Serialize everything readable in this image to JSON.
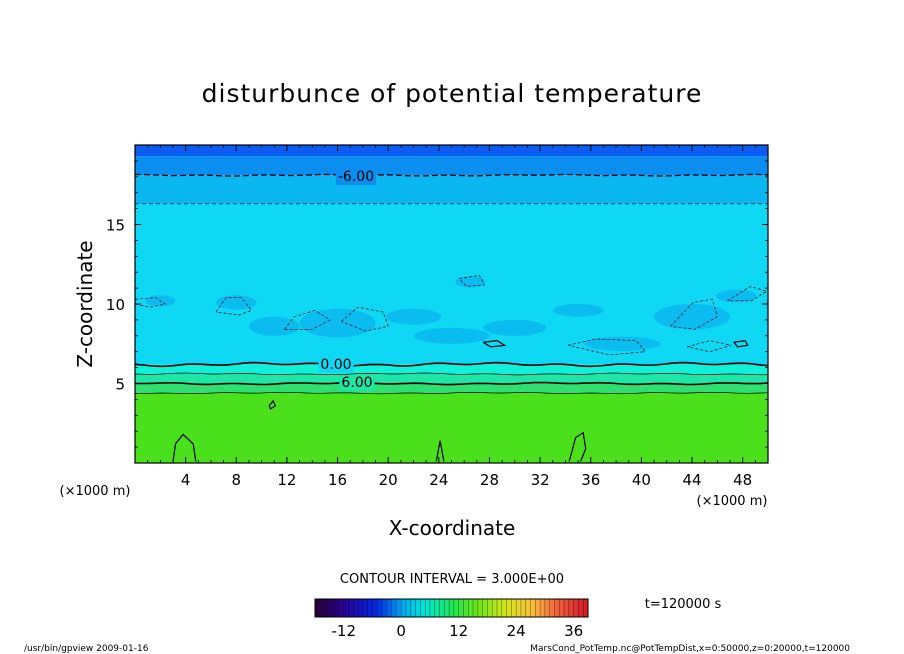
{
  "chart_data": {
    "type": "heatmap",
    "title": "disturbunce of potential temperature",
    "xlabel": "X-coordinate",
    "ylabel": "Z-coordinate",
    "x_unit_left": "(×1000 m)",
    "x_unit_right": "(×1000 m)",
    "xlim": [
      0,
      50
    ],
    "ylim": [
      0,
      20
    ],
    "x_ticks": [
      4,
      8,
      12,
      16,
      20,
      24,
      28,
      32,
      36,
      40,
      44,
      48
    ],
    "y_ticks": [
      5,
      10,
      15
    ],
    "contour_labels": [
      {
        "text": "-6.00",
        "x": 18.5,
        "z": 18.0
      },
      {
        "text": "0.00",
        "x": 15.8,
        "z": 6.2
      },
      {
        "text": "6.00",
        "x": 17.0,
        "z": 5.1
      }
    ],
    "contour_interval_label": "CONTOUR INTERVAL = 3.000E+00",
    "time_label": "t=120000 s",
    "colorbar": {
      "min": -18,
      "max": 39,
      "tick_labels": [
        "-12",
        "0",
        "12",
        "24",
        "36"
      ],
      "tick_values": [
        -12,
        0,
        12,
        24,
        36
      ]
    },
    "layers": [
      {
        "z_from": 0,
        "z_to": 4.4,
        "value": 12,
        "color": "#4be01c"
      },
      {
        "z_from": 4.4,
        "z_to": 5.0,
        "value": 9,
        "color": "#2fe070"
      },
      {
        "z_from": 5.0,
        "z_to": 5.6,
        "value": 6,
        "color": "#1ee6a6"
      },
      {
        "z_from": 5.6,
        "z_to": 6.2,
        "value": 3,
        "color": "#11f0d8"
      },
      {
        "z_from": 6.2,
        "z_to": 16.3,
        "value": -3,
        "color": "#0fd8f5"
      },
      {
        "z_from": 16.3,
        "z_to": 18.1,
        "value": -6,
        "color": "#0bb7f0"
      },
      {
        "z_from": 18.1,
        "z_to": 19.3,
        "value": -9,
        "color": "#0a8ef0"
      },
      {
        "z_from": 19.3,
        "z_to": 20,
        "value": -12,
        "color": "#0a5cf2"
      }
    ]
  },
  "footer": {
    "left": "/usr/bin/gpview   2009-01-16",
    "right": "MarsCond_PotTemp.nc@PotTempDist,x=0:50000,z=0:20000,t=120000"
  }
}
